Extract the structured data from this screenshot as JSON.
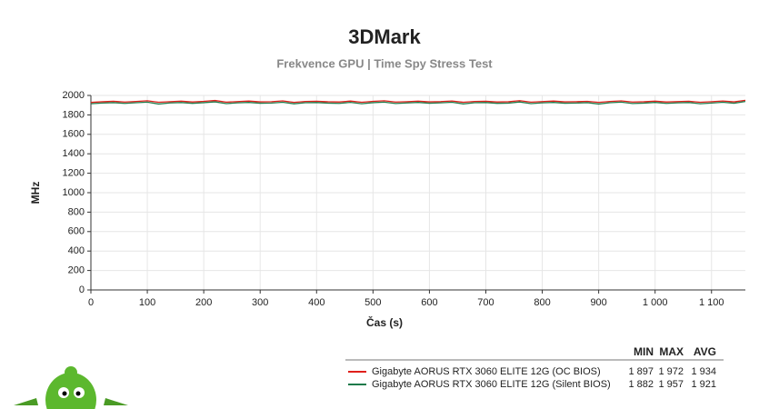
{
  "chart_data": {
    "type": "line",
    "title": "3DMark",
    "subtitle": "Frekvence GPU | Time Spy Stress Test",
    "x_label": "Čas (s)",
    "y_label": "MHz",
    "xlim": [
      0,
      1160
    ],
    "ylim": [
      0,
      2000
    ],
    "xticks": [
      0,
      100,
      200,
      300,
      400,
      500,
      600,
      700,
      800,
      900,
      {
        "value": 1000,
        "label": "1 000"
      },
      {
        "value": 1100,
        "label": "1 100"
      }
    ],
    "yticks": [
      0,
      200,
      400,
      600,
      800,
      1000,
      1200,
      1400,
      1600,
      1800,
      2000
    ],
    "grid": true,
    "x": [
      0,
      20,
      40,
      60,
      80,
      100,
      120,
      140,
      160,
      180,
      200,
      220,
      240,
      260,
      280,
      300,
      320,
      340,
      360,
      380,
      400,
      420,
      440,
      460,
      480,
      500,
      520,
      540,
      560,
      580,
      600,
      620,
      640,
      660,
      680,
      700,
      720,
      740,
      760,
      780,
      800,
      820,
      840,
      860,
      880,
      900,
      920,
      940,
      960,
      980,
      1000,
      1020,
      1040,
      1060,
      1080,
      1100,
      1120,
      1140,
      1160
    ],
    "series": [
      {
        "name": "Gigabyte AORUS RTX 3060 ELITE 12G (OC BIOS)",
        "color": "#e0201b",
        "values": [
          1928,
          1935,
          1940,
          1932,
          1938,
          1945,
          1930,
          1936,
          1941,
          1933,
          1939,
          1948,
          1931,
          1937,
          1942,
          1934,
          1936,
          1944,
          1929,
          1938,
          1940,
          1935,
          1933,
          1942,
          1930,
          1939,
          1945,
          1932,
          1936,
          1941,
          1934,
          1937,
          1943,
          1930,
          1938,
          1940,
          1933,
          1935,
          1946,
          1931,
          1937,
          1942,
          1934,
          1936,
          1939,
          1929,
          1938,
          1944,
          1932,
          1935,
          1941,
          1933,
          1937,
          1940,
          1930,
          1936,
          1943,
          1934,
          1950
        ]
      },
      {
        "name": "Gigabyte AORUS RTX 3060 ELITE 12G (Silent BIOS)",
        "color": "#1e7a4a",
        "values": [
          1915,
          1922,
          1926,
          1918,
          1925,
          1931,
          1912,
          1923,
          1927,
          1919,
          1926,
          1934,
          1916,
          1924,
          1928,
          1920,
          1922,
          1930,
          1914,
          1925,
          1927,
          1921,
          1918,
          1929,
          1915,
          1926,
          1931,
          1917,
          1923,
          1928,
          1920,
          1924,
          1930,
          1913,
          1925,
          1927,
          1919,
          1921,
          1933,
          1916,
          1924,
          1928,
          1920,
          1922,
          1926,
          1912,
          1925,
          1931,
          1917,
          1921,
          1928,
          1918,
          1924,
          1927,
          1915,
          1922,
          1930,
          1920,
          1938
        ]
      }
    ],
    "stats_table": {
      "columns": [
        "MIN",
        "MAX",
        "AVG"
      ],
      "rows": [
        [
          "1 897",
          "1 972",
          "1 934"
        ],
        [
          "1 882",
          "1 957",
          "1 921"
        ]
      ]
    }
  }
}
